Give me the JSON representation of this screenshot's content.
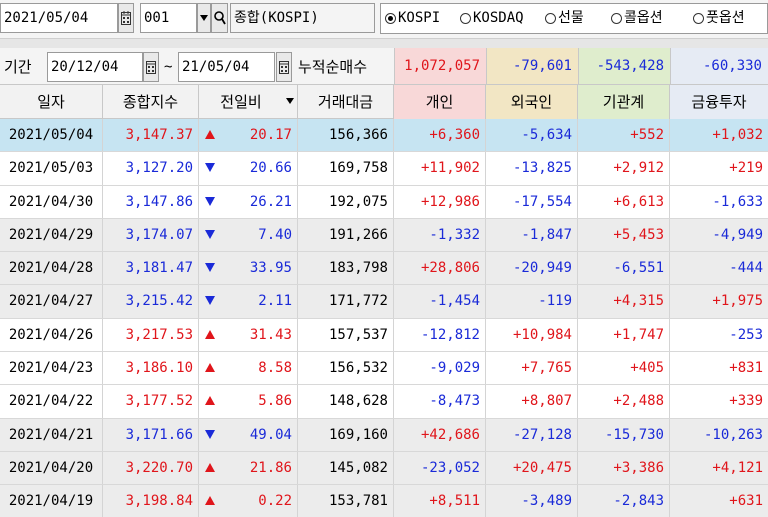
{
  "toolbar": {
    "date": "2021/05/04",
    "code": "001",
    "index_name": "종합(KOSPI)",
    "markets": [
      {
        "label": "KOSPI",
        "selected": true
      },
      {
        "label": "KOSDAQ",
        "selected": false
      },
      {
        "label": "선물",
        "selected": false
      },
      {
        "label": "콜옵션",
        "selected": false
      },
      {
        "label": "풋옵션",
        "selected": false
      }
    ]
  },
  "period": {
    "label": "기간",
    "start": "20/12/04",
    "separator": "~",
    "end": "21/05/04",
    "cumulative_label": "누적순매수",
    "sums": {
      "individual": "1,072,057",
      "foreign": "-79,601",
      "institution": "-543,428",
      "financial": "-60,330"
    }
  },
  "colors": {
    "up": "#e0151b",
    "down": "#1a2ad8",
    "selected_row": "#c6e4f2",
    "individual_header": "#f8d8d8",
    "foreign_header": "#f2e6c4",
    "institution_header": "#dfedcd",
    "financial_header": "#e6ebf4"
  },
  "columns": {
    "date": "일자",
    "index": "종합지수",
    "change": "전일비",
    "volume": "거래대금",
    "individual": "개인",
    "foreign": "외국인",
    "institution": "기관계",
    "financial": "금융투자"
  },
  "rows": [
    {
      "date": "2021/05/04",
      "index": "3,147.37",
      "dir": "up",
      "change": "20.17",
      "volume": "156,366",
      "individual": "+6,360",
      "foreign": "-5,634",
      "institution": "+552",
      "financial": "+1,032"
    },
    {
      "date": "2021/05/03",
      "index": "3,127.20",
      "dir": "down",
      "change": "20.66",
      "volume": "169,758",
      "individual": "+11,902",
      "foreign": "-13,825",
      "institution": "+2,912",
      "financial": "+219"
    },
    {
      "date": "2021/04/30",
      "index": "3,147.86",
      "dir": "down",
      "change": "26.21",
      "volume": "192,075",
      "individual": "+12,986",
      "foreign": "-17,554",
      "institution": "+6,613",
      "financial": "-1,633"
    },
    {
      "date": "2021/04/29",
      "index": "3,174.07",
      "dir": "down",
      "change": "7.40",
      "volume": "191,266",
      "individual": "-1,332",
      "foreign": "-1,847",
      "institution": "+5,453",
      "financial": "-4,949"
    },
    {
      "date": "2021/04/28",
      "index": "3,181.47",
      "dir": "down",
      "change": "33.95",
      "volume": "183,798",
      "individual": "+28,806",
      "foreign": "-20,949",
      "institution": "-6,551",
      "financial": "-444"
    },
    {
      "date": "2021/04/27",
      "index": "3,215.42",
      "dir": "down",
      "change": "2.11",
      "volume": "171,772",
      "individual": "-1,454",
      "foreign": "-119",
      "institution": "+4,315",
      "financial": "+1,975"
    },
    {
      "date": "2021/04/26",
      "index": "3,217.53",
      "dir": "up",
      "change": "31.43",
      "volume": "157,537",
      "individual": "-12,812",
      "foreign": "+10,984",
      "institution": "+1,747",
      "financial": "-253"
    },
    {
      "date": "2021/04/23",
      "index": "3,186.10",
      "dir": "up",
      "change": "8.58",
      "volume": "156,532",
      "individual": "-9,029",
      "foreign": "+7,765",
      "institution": "+405",
      "financial": "+831"
    },
    {
      "date": "2021/04/22",
      "index": "3,177.52",
      "dir": "up",
      "change": "5.86",
      "volume": "148,628",
      "individual": "-8,473",
      "foreign": "+8,807",
      "institution": "+2,488",
      "financial": "+339"
    },
    {
      "date": "2021/04/21",
      "index": "3,171.66",
      "dir": "down",
      "change": "49.04",
      "volume": "169,160",
      "individual": "+42,686",
      "foreign": "-27,128",
      "institution": "-15,730",
      "financial": "-10,263"
    },
    {
      "date": "2021/04/20",
      "index": "3,220.70",
      "dir": "up",
      "change": "21.86",
      "volume": "145,082",
      "individual": "-23,052",
      "foreign": "+20,475",
      "institution": "+3,386",
      "financial": "+4,121"
    },
    {
      "date": "2021/04/19",
      "index": "3,198.84",
      "dir": "up",
      "change": "0.22",
      "volume": "153,781",
      "individual": "+8,511",
      "foreign": "-3,489",
      "institution": "-2,843",
      "financial": "+631"
    }
  ]
}
